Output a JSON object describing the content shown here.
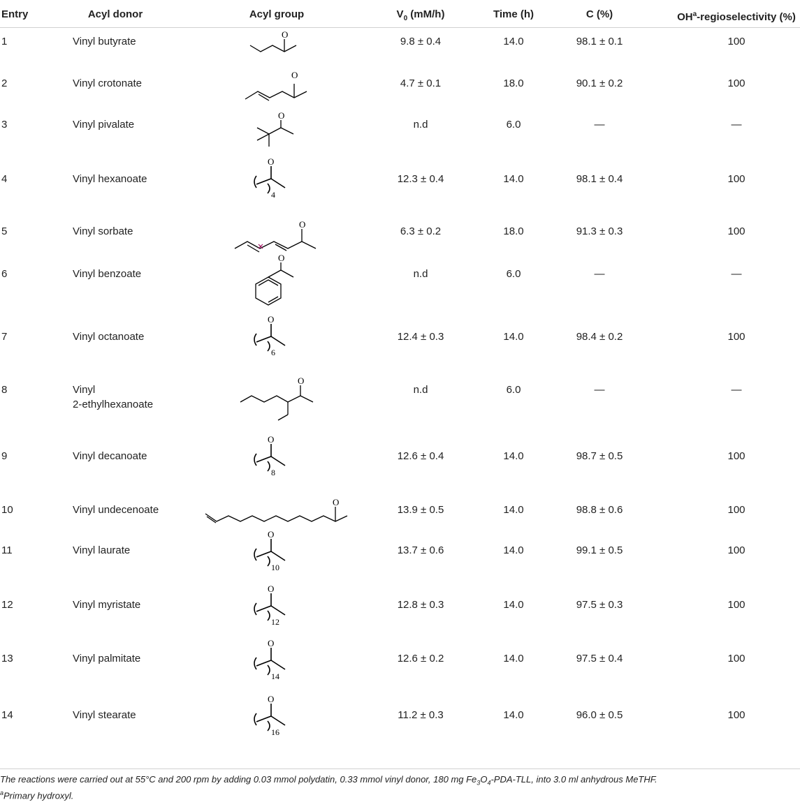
{
  "headers": {
    "entry": "Entry",
    "donor": "Acyl donor",
    "group": "Acyl group",
    "v0_main": "V",
    "v0_sub": "0",
    "v0_tail": " (mM/h)",
    "time": "Time (h)",
    "conv": "C (%)",
    "regio_main": "OH",
    "regio_sup": "a",
    "regio_tail": "-regioselectivity (%)"
  },
  "rows": [
    {
      "entry": "1",
      "donor": "Vinyl butyrate",
      "v0": "9.8 ± 0.4",
      "time": "14.0",
      "conv": "98.1 ± 0.1",
      "regio": "100",
      "group_icon": "butyryl-structure-icon"
    },
    {
      "entry": "2",
      "donor": "Vinyl crotonate",
      "v0": "4.7 ± 0.1",
      "time": "18.0",
      "conv": "90.1 ± 0.2",
      "regio": "100",
      "group_icon": "crotonyl-structure-icon"
    },
    {
      "entry": "3",
      "donor": "Vinyl pivalate",
      "v0": "n.d",
      "time": "6.0",
      "conv": "—",
      "regio": "—",
      "group_icon": "pivaloyl-structure-icon"
    },
    {
      "entry": "4",
      "donor": "Vinyl hexanoate",
      "v0": "12.3 ± 0.4",
      "time": "14.0",
      "conv": "98.1 ± 0.4",
      "regio": "100",
      "group_icon": "hexanoyl-structure-icon",
      "n": "4"
    },
    {
      "entry": "5",
      "donor": "Vinyl sorbate",
      "v0": "6.3 ± 0.2",
      "time": "18.0",
      "conv": "91.3 ± 0.3",
      "regio": "100",
      "group_icon": "sorbyl-structure-icon"
    },
    {
      "entry": "6",
      "donor": "Vinyl benzoate",
      "v0": "n.d",
      "time": "6.0",
      "conv": "—",
      "regio": "—",
      "group_icon": "benzoyl-structure-icon"
    },
    {
      "entry": "7",
      "donor": "Vinyl octanoate",
      "v0": "12.4 ± 0.3",
      "time": "14.0",
      "conv": "98.4 ± 0.2",
      "regio": "100",
      "group_icon": "octanoyl-structure-icon",
      "n": "6"
    },
    {
      "entry": "8",
      "donor": "Vinyl",
      "donor2": "2-ethylhexanoate",
      "v0": "n.d",
      "time": "6.0",
      "conv": "—",
      "regio": "—",
      "group_icon": "ethylhexanoyl-structure-icon"
    },
    {
      "entry": "9",
      "donor": "Vinyl decanoate",
      "v0": "12.6 ± 0.4",
      "time": "14.0",
      "conv": "98.7 ± 0.5",
      "regio": "100",
      "group_icon": "decanoyl-structure-icon",
      "n": "8"
    },
    {
      "entry": "10",
      "donor": "Vinyl undecenoate",
      "v0": "13.9 ± 0.5",
      "time": "14.0",
      "conv": "98.8 ± 0.6",
      "regio": "100",
      "group_icon": "undecenoyl-structure-icon"
    },
    {
      "entry": "11",
      "donor": "Vinyl laurate",
      "v0": "13.7 ± 0.6",
      "time": "14.0",
      "conv": "99.1 ± 0.5",
      "regio": "100",
      "group_icon": "lauroyl-structure-icon",
      "n": "10"
    },
    {
      "entry": "12",
      "donor": "Vinyl myristate",
      "v0": "12.8 ± 0.3",
      "time": "14.0",
      "conv": "97.5 ± 0.3",
      "regio": "100",
      "group_icon": "myristoyl-structure-icon",
      "n": "12"
    },
    {
      "entry": "13",
      "donor": "Vinyl palmitate",
      "v0": "12.6 ± 0.2",
      "time": "14.0",
      "conv": "97.5 ± 0.4",
      "regio": "100",
      "group_icon": "palmitoyl-structure-icon",
      "n": "14"
    },
    {
      "entry": "14",
      "donor": "Vinyl stearate",
      "v0": "11.2 ± 0.3",
      "time": "14.0",
      "conv": "96.0 ± 0.5",
      "regio": "100",
      "group_icon": "stearoyl-structure-icon",
      "n": "16"
    }
  ],
  "footnote": {
    "line1_a": "The reactions were carried out at 55°C and 200 rpm by adding 0.03 mmol polydatin, 0.33 mmol vinyl donor, 180 mg Fe",
    "line1_sub1": "3",
    "line1_b": "O",
    "line1_sub2": "4",
    "line1_c": "-PDA-TLL, into 3.0 ml anhydrous MeTHF.",
    "line2_sup": "a",
    "line2": "Primary hydroxyl."
  }
}
